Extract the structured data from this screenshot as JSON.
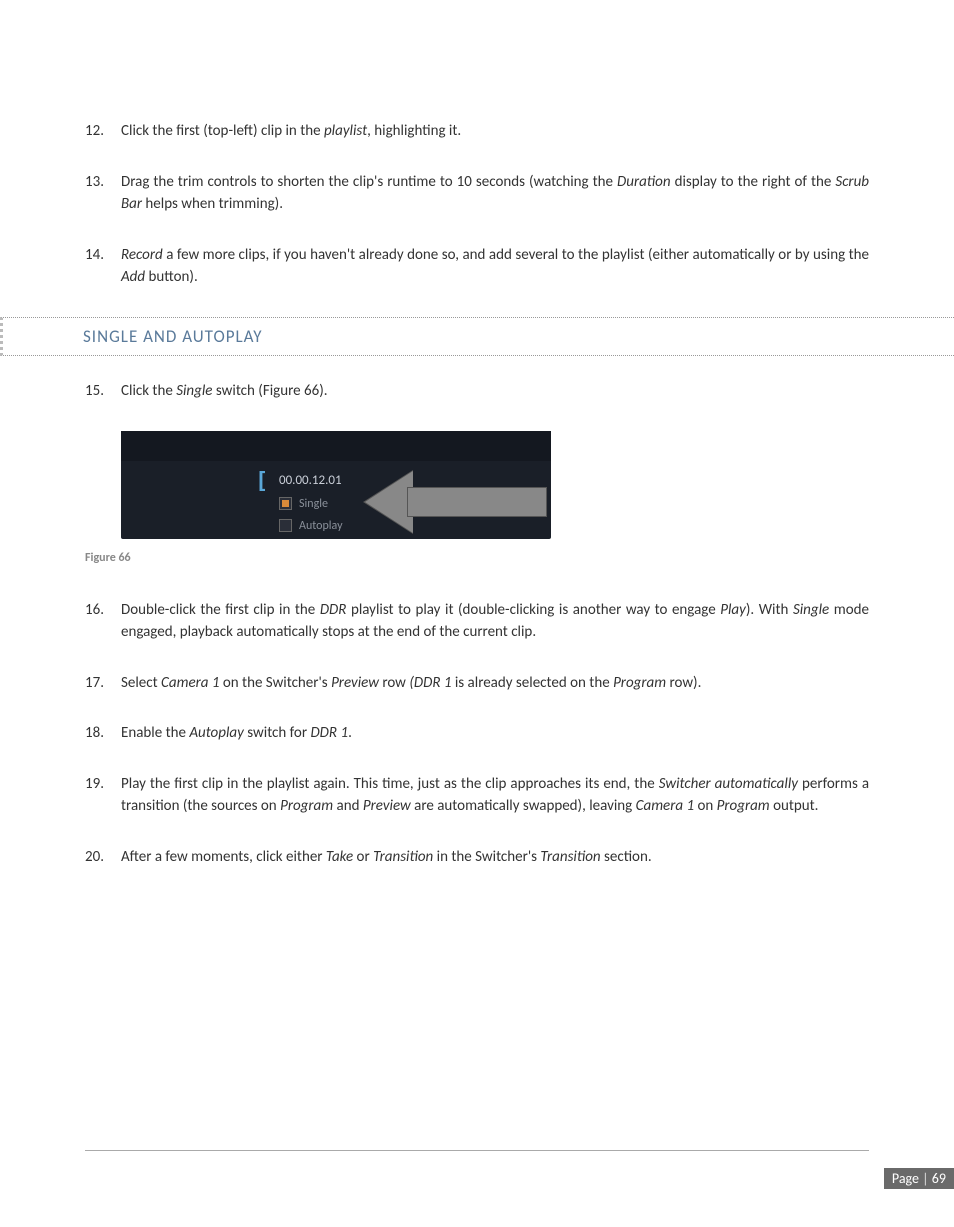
{
  "steps_top": [
    {
      "num": "12.",
      "html": "Click the first (top-left) clip in the <i>playlist</i>, highlighting it."
    },
    {
      "num": "13.",
      "html": "Drag the trim controls to shorten the clip's runtime to 10 seconds (watching the <i>Duration</i> display to the right of the <i>Scrub Bar</i> helps when trimming)."
    },
    {
      "num": "14.",
      "html": "<i>Record</i> a few more clips, if you haven't already done so, and add several to the playlist (either automatically or by using the <i>Add</i> button)."
    }
  ],
  "section_heading": "SINGLE AND AUTOPLAY",
  "step15": {
    "num": "15.",
    "html": "Click the <i>Single</i> switch (Figure 66)."
  },
  "screenshot": {
    "time": "00.00.12.01",
    "single_label": "Single",
    "autoplay_label": "Autoplay",
    "bg_color": "#1a1f28",
    "top_color": "#141820",
    "bracket_color": "#5aa7d8",
    "text_color": "#c8cdd6",
    "label_color": "#8a909a",
    "check_color": "#d88a3a",
    "arrow_fill": "#888888",
    "arrow_border": "#555555"
  },
  "figure_caption": "Figure 66",
  "steps_bottom": [
    {
      "num": "16.",
      "html": "Double-click the first clip in the <i>DDR</i> playlist to play it (double-clicking is another way to engage <i>Play</i>). With <i>Single</i> mode engaged, playback automatically stops at the end of the current clip."
    },
    {
      "num": "17.",
      "html": "Select <i>Camera 1</i> on the Switcher's <i>Preview</i> row <i>(DDR 1</i> is already selected on the <i>Program</i> row)."
    },
    {
      "num": "18.",
      "html": "Enable the <i>Autoplay</i> switch for <i>DDR 1</i>."
    },
    {
      "num": "19.",
      "html": "Play the first clip in the playlist again.  This time, just as the clip approaches its end, the <i>Switcher automatically</i> performs a transition (the sources on <i>Program</i> and <i>Preview</i> are automatically swapped), leaving <i>Camera 1</i> on <i>Program</i> output."
    },
    {
      "num": "20.",
      "html": "After a few moments, click either <i>Take</i> or <i>Transition</i> in the Switcher's <i>Transition</i> section."
    }
  ],
  "page_label": "Page",
  "page_number": "69"
}
